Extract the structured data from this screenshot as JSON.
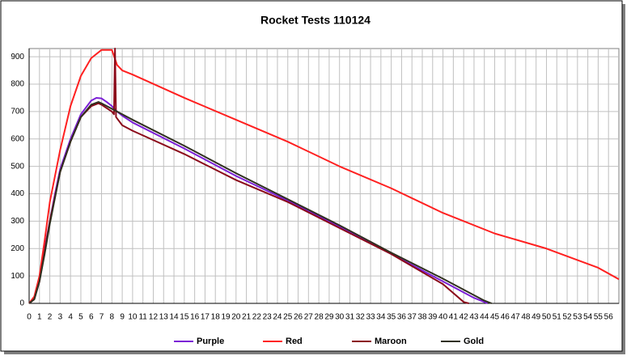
{
  "chart_data": {
    "type": "line",
    "title": "Rocket Tests 110124",
    "xlim": [
      0,
      57
    ],
    "xticks": [
      0,
      1,
      2,
      3,
      4,
      5,
      6,
      7,
      8,
      9,
      10,
      11,
      12,
      13,
      14,
      15,
      16,
      17,
      18,
      19,
      20,
      21,
      22,
      23,
      24,
      25,
      26,
      27,
      28,
      29,
      30,
      31,
      32,
      33,
      34,
      35,
      36,
      37,
      38,
      39,
      40,
      41,
      42,
      43,
      44,
      45,
      46,
      47,
      48,
      49,
      50,
      51,
      52,
      53,
      54,
      55,
      56
    ],
    "ylim": [
      0,
      930
    ],
    "yticks": [
      0,
      100,
      200,
      300,
      400,
      500,
      600,
      700,
      800,
      900
    ],
    "grid": true,
    "legend": "bottom",
    "series": [
      {
        "name": "Purple",
        "color": "#7b1fd6",
        "x": [
          0,
          0.5,
          1,
          1.5,
          2,
          2.5,
          3,
          4,
          5,
          6,
          6.5,
          7,
          7.5,
          8,
          8.5,
          9,
          10,
          15,
          20,
          25,
          30,
          35,
          40,
          43,
          44,
          44.3
        ],
        "values": [
          0,
          20,
          90,
          200,
          300,
          400,
          490,
          600,
          690,
          740,
          750,
          748,
          735,
          720,
          700,
          685,
          660,
          565,
          465,
          375,
          280,
          180,
          80,
          20,
          5,
          0
        ]
      },
      {
        "name": "Red",
        "color": "#ff2020",
        "x": [
          0,
          0.5,
          1,
          1.5,
          2,
          3,
          4,
          5,
          6,
          7,
          8,
          8.5,
          9,
          10,
          15,
          20,
          25,
          30,
          35,
          40,
          45,
          50,
          55,
          57
        ],
        "values": [
          0,
          25,
          100,
          230,
          370,
          560,
          720,
          830,
          895,
          925,
          925,
          870,
          850,
          835,
          750,
          670,
          590,
          500,
          420,
          330,
          255,
          200,
          130,
          88
        ]
      },
      {
        "name": "Maroon",
        "color": "#8b0a1a",
        "x": [
          0,
          0.5,
          1,
          1.5,
          2,
          3,
          4,
          5,
          6,
          6.7,
          7,
          8,
          8.2,
          8.3,
          8.4,
          9,
          10,
          15,
          20,
          25,
          30,
          35,
          40,
          42,
          42.5
        ],
        "values": [
          0,
          15,
          80,
          190,
          300,
          480,
          590,
          680,
          720,
          730,
          725,
          700,
          690,
          930,
          680,
          650,
          630,
          545,
          450,
          370,
          275,
          180,
          70,
          5,
          0
        ]
      },
      {
        "name": "Gold",
        "color": "#303020",
        "x": [
          0,
          0.5,
          1,
          1.5,
          2,
          3,
          4,
          5,
          6,
          6.7,
          7,
          8,
          9,
          10,
          15,
          20,
          25,
          30,
          35,
          40,
          43,
          44,
          44.7
        ],
        "values": [
          0,
          15,
          80,
          180,
          290,
          480,
          590,
          680,
          725,
          735,
          730,
          710,
          690,
          670,
          575,
          475,
          380,
          285,
          185,
          90,
          30,
          10,
          0
        ]
      }
    ]
  }
}
